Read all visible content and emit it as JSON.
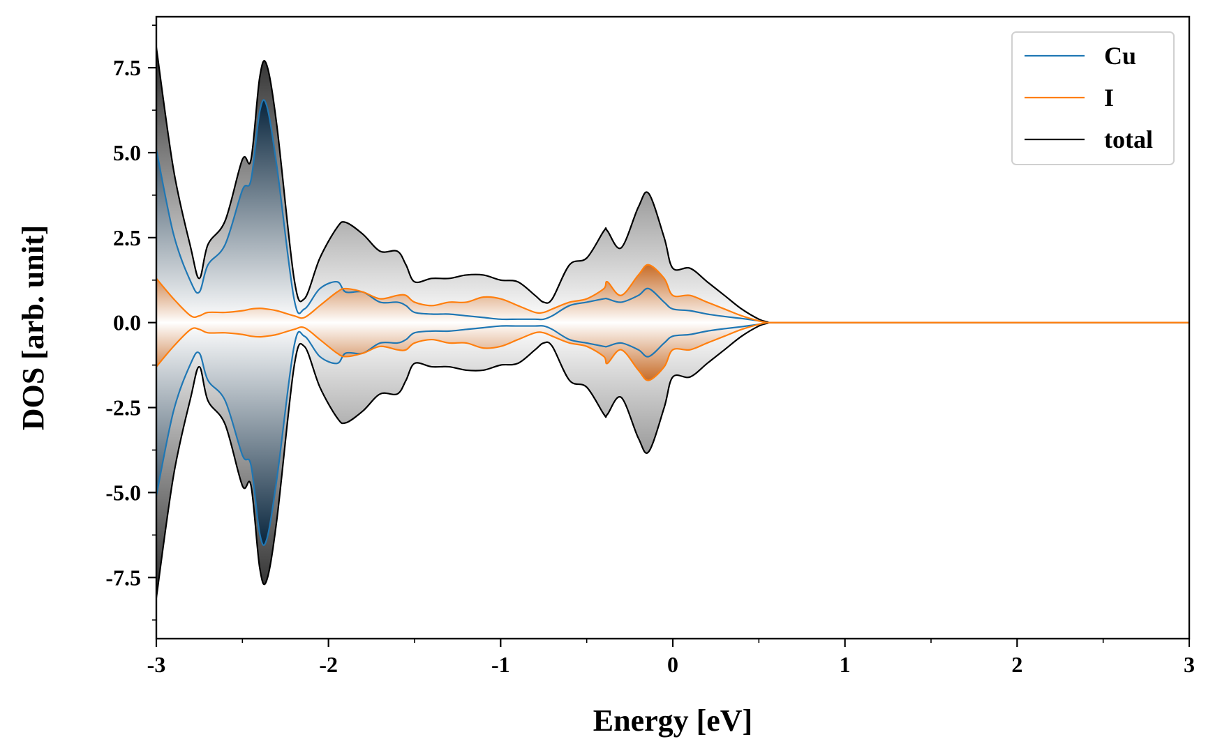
{
  "chart_data": {
    "type": "area",
    "title": "",
    "xlabel": "Energy [eV]",
    "ylabel": "DOS [arb. unit]",
    "xlim": [
      -3,
      3
    ],
    "ylim": [
      -9.3,
      9.0
    ],
    "xticks": [
      -3,
      -2,
      -1,
      0,
      1,
      2,
      3
    ],
    "xtick_labels": [
      "-3",
      "-2",
      "-1",
      "0",
      "1",
      "2",
      "3"
    ],
    "yticks": [
      -7.5,
      -5.0,
      -2.5,
      0.0,
      2.5,
      5.0,
      7.5
    ],
    "ytick_labels": [
      "-7.5",
      "-5.0",
      "-2.5",
      "0.0",
      "2.5",
      "5.0",
      "7.5"
    ],
    "mirrored": true,
    "grid": false,
    "legend_position": "top-right",
    "x": [
      -3.0,
      -2.9,
      -2.8,
      -2.75,
      -2.7,
      -2.6,
      -2.5,
      -2.45,
      -2.4,
      -2.36,
      -2.3,
      -2.2,
      -2.14,
      -2.05,
      -1.95,
      -1.9,
      -1.8,
      -1.7,
      -1.6,
      -1.55,
      -1.5,
      -1.4,
      -1.3,
      -1.2,
      -1.1,
      -1.0,
      -0.9,
      -0.8,
      -0.75,
      -0.7,
      -0.6,
      -0.5,
      -0.4,
      -0.38,
      -0.3,
      -0.2,
      -0.14,
      -0.05,
      0.0,
      0.1,
      0.2,
      0.3,
      0.4,
      0.5,
      0.55,
      0.6,
      1.0,
      2.0,
      3.0
    ],
    "series": [
      {
        "name": "Cu",
        "color": "#1f77b4",
        "values": [
          5.1,
          2.6,
          1.2,
          0.9,
          1.7,
          2.3,
          3.9,
          4.2,
          6.2,
          6.4,
          4.6,
          0.7,
          0.4,
          1.0,
          1.2,
          0.9,
          0.9,
          0.6,
          0.6,
          0.5,
          0.3,
          0.25,
          0.25,
          0.2,
          0.15,
          0.1,
          0.1,
          0.1,
          0.1,
          0.2,
          0.5,
          0.6,
          0.7,
          0.7,
          0.6,
          0.8,
          1.0,
          0.6,
          0.4,
          0.35,
          0.25,
          0.18,
          0.12,
          0.05,
          0.0,
          0.0,
          0.0,
          0.0,
          0.0
        ]
      },
      {
        "name": "I",
        "color": "#ff7f0e",
        "values": [
          1.3,
          0.7,
          0.2,
          0.2,
          0.3,
          0.3,
          0.35,
          0.4,
          0.42,
          0.4,
          0.35,
          0.2,
          0.15,
          0.5,
          0.9,
          1.0,
          0.9,
          0.7,
          0.8,
          0.8,
          0.6,
          0.5,
          0.6,
          0.6,
          0.75,
          0.7,
          0.5,
          0.3,
          0.3,
          0.4,
          0.6,
          0.7,
          1.0,
          1.2,
          0.8,
          1.4,
          1.7,
          1.3,
          0.8,
          0.8,
          0.6,
          0.4,
          0.2,
          0.05,
          0.0,
          0.0,
          0.0,
          0.0,
          0.0
        ]
      },
      {
        "name": "total",
        "color": "#000000",
        "values": [
          8.1,
          4.5,
          2.2,
          1.3,
          2.3,
          3.0,
          4.8,
          4.8,
          7.2,
          7.6,
          5.8,
          1.3,
          0.7,
          1.9,
          2.8,
          2.95,
          2.6,
          2.1,
          2.1,
          1.7,
          1.2,
          1.3,
          1.3,
          1.4,
          1.4,
          1.25,
          1.2,
          0.8,
          0.6,
          0.7,
          1.7,
          1.9,
          2.7,
          2.7,
          2.2,
          3.4,
          3.8,
          2.5,
          1.6,
          1.6,
          1.2,
          0.8,
          0.4,
          0.1,
          0.02,
          0.0,
          0.0,
          0.0,
          0.0
        ]
      }
    ]
  }
}
